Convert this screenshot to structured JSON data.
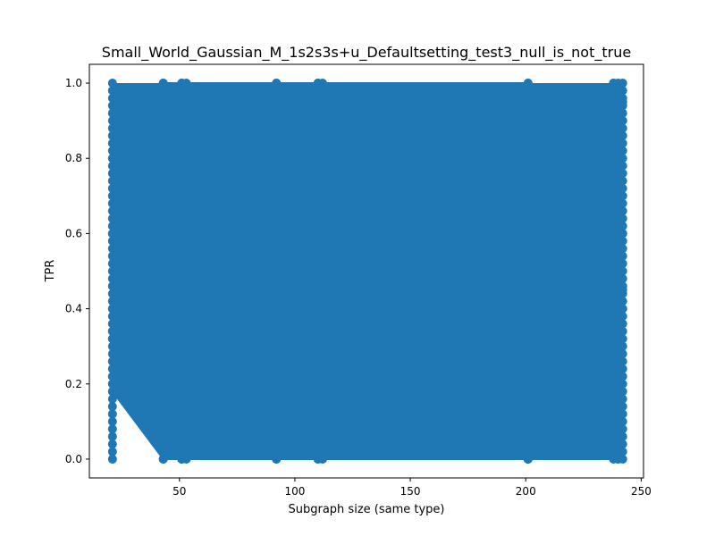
{
  "chart_data": {
    "type": "line",
    "title": "Small_World_Gaussian_M_1s2s3s+u_Defaultsetting_test3_null_is_not_true",
    "xlabel": "Subgraph size (same type)",
    "ylabel": "TPR",
    "xlim": [
      11,
      251
    ],
    "ylim": [
      -0.05,
      1.05
    ],
    "xticks": [
      50,
      100,
      150,
      200,
      250
    ],
    "yticks": [
      0.0,
      0.2,
      0.4,
      0.6,
      0.8,
      1.0
    ],
    "xtick_labels": [
      "50",
      "100",
      "150",
      "200",
      "250"
    ],
    "ytick_labels": [
      "0.0",
      "0.2",
      "0.4",
      "0.6",
      "0.8",
      "1.0"
    ],
    "grid": false,
    "legend": "none",
    "series_color": "#1f77b4",
    "marker": "circle",
    "x_clusters": [
      21,
      43,
      51,
      53,
      92,
      110,
      112,
      201,
      238,
      240,
      242
    ],
    "series": [
      {
        "x": [
          21,
          43,
          51,
          92,
          110,
          201,
          240,
          242,
          238,
          112,
          53,
          21,
          43,
          51,
          92,
          110,
          201,
          240,
          242
        ],
        "values": [
          0.18,
          0.0,
          0.0,
          0.0,
          0.0,
          0.0,
          0.0,
          0.4,
          1.0,
          0.17,
          0.2,
          0.34,
          1.0,
          1.0,
          1.0,
          1.0,
          1.0,
          0.5,
          0.9
        ]
      },
      {
        "x": [
          21,
          43,
          53,
          110,
          112,
          201,
          238,
          242
        ],
        "values": [
          0.2,
          0.02,
          0.04,
          0.06,
          0.1,
          0.3,
          0.2,
          0.6
        ]
      },
      {
        "x": [
          21,
          43,
          51,
          110,
          201,
          240
        ],
        "values": [
          0.22,
          0.05,
          0.1,
          0.14,
          0.5,
          0.35
        ]
      },
      {
        "x": [
          21,
          43,
          53,
          112,
          201,
          242
        ],
        "values": [
          0.26,
          0.12,
          0.16,
          0.2,
          0.6,
          0.45
        ]
      },
      {
        "x": [
          21,
          51,
          110,
          201,
          238
        ],
        "values": [
          0.4,
          0.5,
          0.6,
          0.7,
          0.8
        ]
      },
      {
        "x": [
          21,
          43,
          92,
          201,
          242
        ],
        "values": [
          0.6,
          0.7,
          0.75,
          0.85,
          0.95
        ]
      },
      {
        "x": [
          21,
          53,
          112,
          238
        ],
        "values": [
          0.8,
          0.85,
          0.9,
          0.98
        ]
      },
      {
        "x": [
          21,
          51,
          201,
          240
        ],
        "values": [
          0.32,
          0.0,
          0.0,
          0.1
        ]
      }
    ]
  }
}
